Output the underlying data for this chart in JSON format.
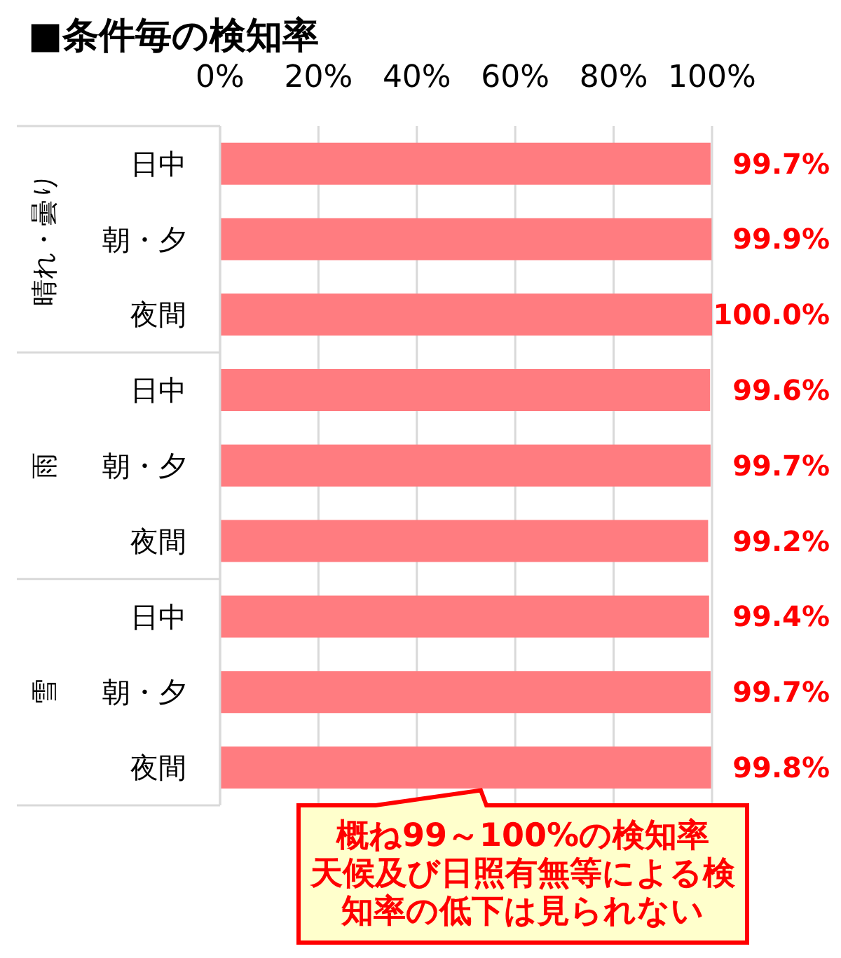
{
  "chart_data": {
    "type": "bar",
    "orientation": "horizontal",
    "title": "■条件毎の検知率",
    "categories": [
      "日中",
      "朝・夕",
      "夜間",
      "日中",
      "朝・夕",
      "夜間",
      "日中",
      "朝・夕",
      "夜間"
    ],
    "values": [
      99.7,
      99.9,
      100.0,
      99.6,
      99.7,
      99.2,
      99.4,
      99.7,
      99.8
    ],
    "color": "#ff7c80",
    "value_labels": [
      "99.7%",
      "99.9%",
      "100.0%",
      "99.6%",
      "99.7%",
      "99.2%",
      "99.4%",
      "99.7%",
      "99.8%"
    ],
    "xlim": [
      0,
      100
    ],
    "xticks": [
      {
        "value": 0,
        "label": "0%"
      },
      {
        "value": 20,
        "label": "20%"
      },
      {
        "value": 40,
        "label": "40%"
      },
      {
        "value": 60,
        "label": "60%"
      },
      {
        "value": 80,
        "label": "80%"
      },
      {
        "value": 100,
        "label": "100%"
      }
    ],
    "grid": "x",
    "annotations": [
      "晴れ・曇り",
      "雨",
      "雪",
      "概ね99～100%の検知率天候及び日照有無等による検知率の低下は見られない"
    ]
  }
}
